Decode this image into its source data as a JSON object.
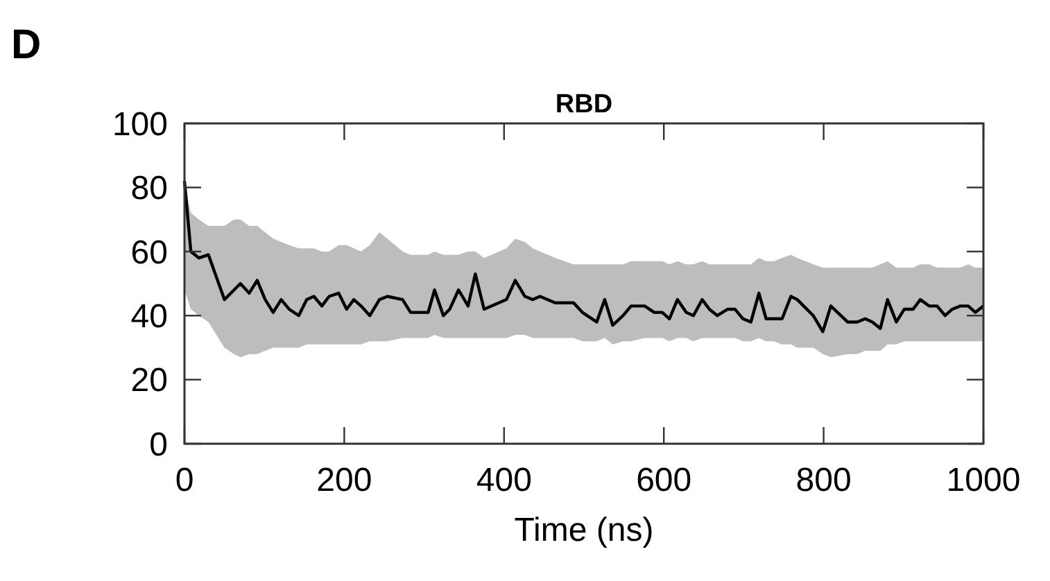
{
  "chart_data": {
    "type": "line",
    "title": "RBD",
    "xlabel": "Time (ns)",
    "annotations": [
      "D"
    ],
    "xlim": [
      0,
      1000
    ],
    "ylim": [
      0,
      100
    ],
    "xticks": [
      0,
      200,
      400,
      600,
      800,
      1000
    ],
    "yticks": [
      0,
      20,
      40,
      60,
      80,
      100
    ],
    "grid": false,
    "marker": "none",
    "line_style": "solid",
    "series": [
      {
        "color": "#000000",
        "x": [
          0,
          8,
          18,
          30,
          50,
          62,
          70,
          81,
          91,
          101,
          111,
          121,
          131,
          143,
          153,
          162,
          172,
          181,
          193,
          203,
          212,
          221,
          232,
          244,
          254,
          273,
          283,
          305,
          313,
          324,
          332,
          343,
          355,
          364,
          375,
          403,
          414,
          426,
          436,
          445,
          464,
          487,
          498,
          516,
          526,
          536,
          549,
          559,
          576,
          588,
          598,
          607,
          617,
          628,
          637,
          648,
          657,
          667,
          680,
          689,
          699,
          709,
          719,
          728,
          738,
          748,
          759,
          767,
          787,
          799,
          809,
          830,
          842,
          852,
          861,
          871,
          880,
          891,
          901,
          912,
          921,
          932,
          942,
          952,
          961,
          971,
          981,
          990,
          1000
        ],
        "values": [
          82,
          60,
          58,
          59,
          45,
          48,
          50,
          47,
          51,
          45,
          41,
          45,
          42,
          40,
          45,
          46,
          43,
          46,
          47,
          42,
          45,
          43,
          40,
          45,
          46,
          45,
          41,
          41,
          48,
          40,
          42,
          48,
          43,
          53,
          42,
          45,
          51,
          46,
          45,
          46,
          44,
          44,
          41,
          38,
          45,
          37,
          40,
          43,
          43,
          41,
          41,
          39,
          45,
          41,
          40,
          45,
          42,
          40,
          42,
          42,
          39,
          38,
          47,
          39,
          39,
          39,
          46,
          45,
          40,
          35,
          43,
          38,
          38,
          39,
          38,
          36,
          45,
          38,
          42,
          42,
          45,
          43,
          43,
          40,
          42,
          43,
          43,
          41,
          43
        ],
        "lower": [
          48,
          42,
          40,
          38,
          30,
          28,
          27,
          28,
          28,
          29,
          30,
          30,
          30,
          30,
          31,
          31,
          31,
          31,
          31,
          31,
          31,
          31,
          32,
          32,
          32,
          33,
          33,
          33,
          34,
          33,
          33,
          33,
          33,
          33,
          33,
          33,
          34,
          34,
          33,
          33,
          33,
          33,
          32,
          32,
          33,
          31,
          32,
          32,
          33,
          33,
          33,
          32,
          33,
          33,
          32,
          33,
          33,
          33,
          33,
          33,
          32,
          32,
          33,
          32,
          32,
          31,
          31,
          30,
          30,
          28,
          27,
          28,
          28,
          29,
          29,
          29,
          31,
          31,
          32,
          32,
          32,
          32,
          32,
          32,
          32,
          32,
          32,
          32,
          32
        ],
        "upper": [
          82,
          72,
          70,
          68,
          68,
          70,
          70,
          68,
          68,
          66,
          64,
          63,
          62,
          61,
          61,
          61,
          60,
          60,
          62,
          62,
          61,
          60,
          62,
          66,
          64,
          60,
          59,
          59,
          60,
          59,
          59,
          59,
          60,
          60,
          58,
          61,
          64,
          63,
          61,
          60,
          58,
          56,
          56,
          56,
          56,
          56,
          56,
          57,
          57,
          57,
          57,
          56,
          57,
          56,
          56,
          57,
          56,
          56,
          56,
          56,
          56,
          56,
          58,
          57,
          57,
          58,
          59,
          58,
          56,
          55,
          55,
          55,
          55,
          55,
          55,
          56,
          57,
          55,
          55,
          55,
          56,
          56,
          55,
          55,
          55,
          55,
          56,
          55,
          55
        ]
      }
    ]
  }
}
